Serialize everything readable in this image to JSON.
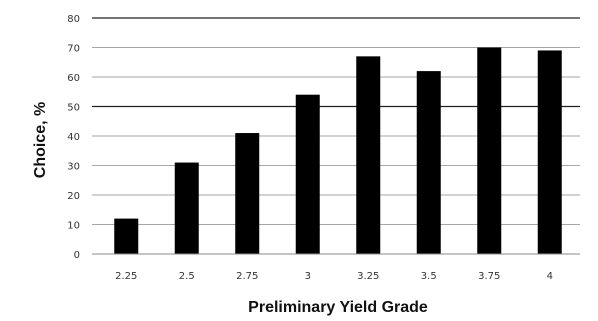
{
  "chart_data": {
    "type": "bar",
    "title": "",
    "xlabel": "Preliminary Yield Grade",
    "ylabel": "Choice, %",
    "categories": [
      "2.25",
      "2.5",
      "2.75",
      "3",
      "3.25",
      "3.5",
      "3.75",
      "4"
    ],
    "values": [
      12,
      31,
      41,
      54,
      67,
      62,
      70,
      69
    ],
    "ylim": [
      0,
      80
    ],
    "yticks": [
      "0",
      "10",
      "20",
      "30",
      "40",
      "50",
      "60",
      "70",
      "80"
    ],
    "grid": true,
    "legend": "none",
    "colors": {
      "bar": "#000000",
      "grid": "#888888",
      "grid_major": "#222222"
    }
  }
}
